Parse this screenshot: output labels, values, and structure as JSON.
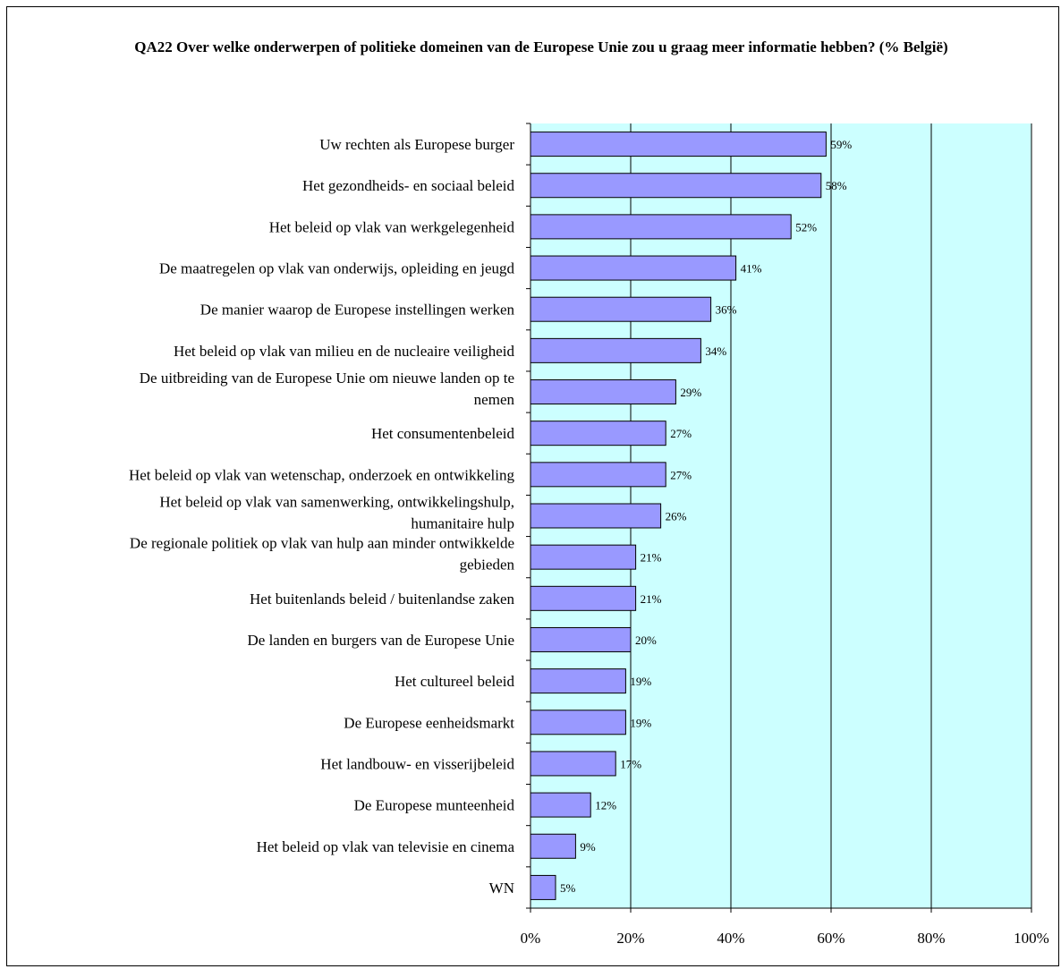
{
  "chart_data": {
    "type": "bar",
    "orientation": "horizontal",
    "title": "QA22 Over welke onderwerpen of politieke domeinen van de Europese Unie zou u graag meer informatie hebben? (% België)",
    "categories": [
      "Uw rechten als Europese burger",
      "Het gezondheids- en sociaal beleid",
      "Het beleid op vlak van werkgelegenheid",
      "De maatregelen op vlak van onderwijs, opleiding en jeugd",
      "De manier waarop de Europese instellingen werken",
      "Het beleid op vlak van milieu en de nucleaire veiligheid",
      "De uitbreiding van de Europese Unie om nieuwe landen op te nemen",
      "Het consumentenbeleid",
      "Het beleid op vlak van wetenschap, onderzoek en ontwikkeling",
      "Het beleid op vlak van samenwerking, ontwikkelingshulp, humanitaire hulp",
      "De regionale politiek op vlak van hulp aan minder ontwikkelde gebieden",
      "Het buitenlands beleid / buitenlandse zaken",
      "De landen en burgers van de Europese Unie",
      "Het cultureel beleid",
      "De Europese eenheidsmarkt",
      "Het landbouw- en visserijbeleid",
      "De Europese munteenheid",
      "Het beleid op vlak van televisie en cinema",
      "WN"
    ],
    "category_lines": [
      [
        "Uw rechten als Europese burger"
      ],
      [
        "Het gezondheids- en sociaal beleid"
      ],
      [
        "Het beleid op vlak van werkgelegenheid"
      ],
      [
        "De maatregelen op vlak van onderwijs, opleiding en jeugd"
      ],
      [
        "De manier waarop de Europese instellingen werken"
      ],
      [
        "Het beleid op vlak van milieu en de nucleaire veiligheid"
      ],
      [
        "De uitbreiding van de Europese Unie om nieuwe landen op te",
        "nemen"
      ],
      [
        "Het consumentenbeleid"
      ],
      [
        "Het beleid op vlak van wetenschap, onderzoek en ontwikkeling"
      ],
      [
        "Het beleid op vlak van samenwerking, ontwikkelingshulp,",
        "humanitaire hulp"
      ],
      [
        "De regionale politiek op vlak van hulp aan minder ontwikkelde",
        "gebieden"
      ],
      [
        "Het buitenlands beleid / buitenlandse zaken"
      ],
      [
        "De landen en burgers van de Europese Unie"
      ],
      [
        "Het cultureel beleid"
      ],
      [
        "De Europese eenheidsmarkt"
      ],
      [
        "Het landbouw- en visserijbeleid"
      ],
      [
        "De Europese munteenheid"
      ],
      [
        "Het beleid op vlak van televisie en cinema"
      ],
      [
        "WN"
      ]
    ],
    "values": [
      59,
      58,
      52,
      41,
      36,
      34,
      29,
      27,
      27,
      26,
      21,
      21,
      20,
      19,
      19,
      17,
      12,
      9,
      5
    ],
    "value_labels": [
      "59%",
      "58%",
      "52%",
      "41%",
      "36%",
      "34%",
      "29%",
      "27%",
      "27%",
      "26%",
      "21%",
      "21%",
      "20%",
      "19%",
      "19%",
      "17%",
      "12%",
      "9%",
      "5%"
    ],
    "xlim": [
      0,
      100
    ],
    "xticks": [
      0,
      20,
      40,
      60,
      80,
      100
    ],
    "xtick_labels": [
      "0%",
      "20%",
      "40%",
      "60%",
      "80%",
      "100%"
    ],
    "grid": true,
    "legend": "none"
  },
  "colors": {
    "bar_fill": "#9999FF",
    "bar_stroke": "#000000",
    "plot_background": "#CCFFFF",
    "gridline": "#000000"
  }
}
